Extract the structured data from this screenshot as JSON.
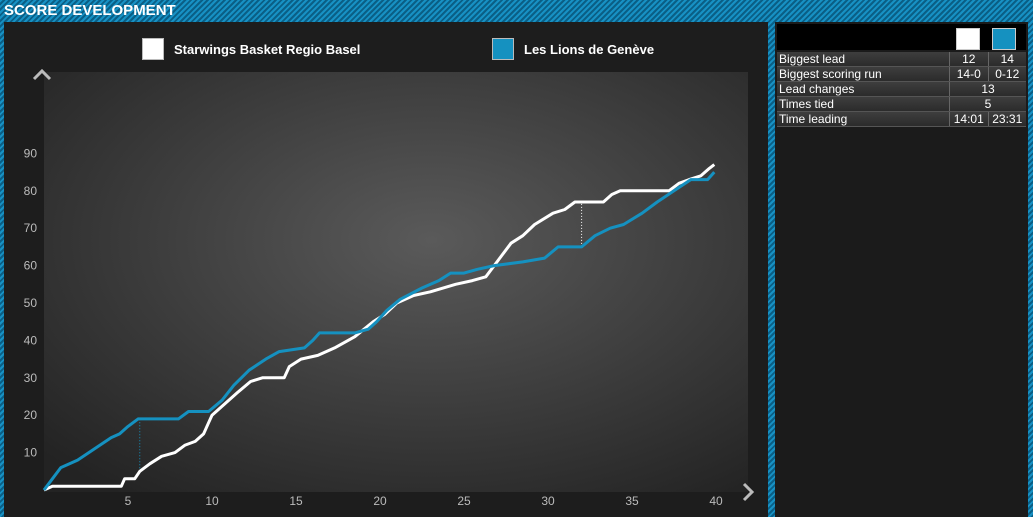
{
  "header": {
    "title": "SCORE DEVELOPMENT"
  },
  "legend": [
    {
      "name": "Starwings Basket Regio Basel",
      "color": "#ffffff"
    },
    {
      "name": "Les Lions de Genève",
      "color": "#1591c0"
    }
  ],
  "stats": {
    "rows": [
      {
        "label": "Biggest lead",
        "a": "12",
        "b": "14"
      },
      {
        "label": "Biggest scoring run",
        "a": "14-0",
        "b": "0-12"
      },
      {
        "label": "Lead changes",
        "both": "13"
      },
      {
        "label": "Times tied",
        "both": "5"
      },
      {
        "label": "Time leading",
        "a": "14:01",
        "b": "23:31"
      }
    ]
  },
  "chart_data": {
    "type": "line",
    "xlim": [
      0,
      40
    ],
    "ylim": [
      0,
      95
    ],
    "x_ticks": [
      "5",
      "10",
      "15",
      "20",
      "25",
      "30",
      "35",
      "40"
    ],
    "y_ticks": [
      "10",
      "20",
      "30",
      "40",
      "50",
      "60",
      "70",
      "80",
      "90"
    ],
    "series": [
      {
        "name": "Starwings Basket Regio Basel",
        "color": "#ffffff",
        "points": [
          [
            0,
            0
          ],
          [
            0.5,
            1
          ],
          [
            2,
            1
          ],
          [
            4.6,
            1
          ],
          [
            4.8,
            3
          ],
          [
            5.4,
            3
          ],
          [
            5.7,
            5
          ],
          [
            6.3,
            7
          ],
          [
            7,
            9
          ],
          [
            7.8,
            10
          ],
          [
            8.4,
            12
          ],
          [
            9,
            13
          ],
          [
            9.5,
            15
          ],
          [
            9.8,
            18
          ],
          [
            10,
            20
          ],
          [
            10.5,
            22
          ],
          [
            11,
            24
          ],
          [
            11.5,
            26
          ],
          [
            12.3,
            29
          ],
          [
            13,
            30
          ],
          [
            14.3,
            30
          ],
          [
            14.6,
            33
          ],
          [
            15.3,
            35
          ],
          [
            16.3,
            36
          ],
          [
            17.3,
            38
          ],
          [
            18.5,
            41
          ],
          [
            19.6,
            45
          ],
          [
            20.3,
            47
          ],
          [
            21,
            50
          ],
          [
            22,
            52
          ],
          [
            23,
            53
          ],
          [
            24.5,
            55
          ],
          [
            25.5,
            56
          ],
          [
            26.3,
            57
          ],
          [
            26.8,
            60
          ],
          [
            27.3,
            63
          ],
          [
            27.8,
            66
          ],
          [
            28.5,
            68
          ],
          [
            29.2,
            71
          ],
          [
            30.3,
            74
          ],
          [
            31,
            75
          ],
          [
            31.6,
            77
          ],
          [
            33.3,
            77
          ],
          [
            33.8,
            79
          ],
          [
            34.3,
            80
          ],
          [
            35.3,
            80
          ],
          [
            37.2,
            80
          ],
          [
            37.8,
            82
          ],
          [
            38.4,
            83
          ],
          [
            39.1,
            84
          ],
          [
            39.6,
            86
          ],
          [
            39.9,
            87
          ]
        ]
      },
      {
        "name": "Les Lions de Genève",
        "color": "#1591c0",
        "points": [
          [
            0,
            0
          ],
          [
            0.5,
            3
          ],
          [
            1,
            6
          ],
          [
            2,
            8
          ],
          [
            3,
            11
          ],
          [
            4,
            14
          ],
          [
            4.5,
            15
          ],
          [
            5,
            17
          ],
          [
            5.6,
            19
          ],
          [
            7,
            19
          ],
          [
            8,
            19
          ],
          [
            8.6,
            21
          ],
          [
            9.8,
            21
          ],
          [
            10.6,
            24
          ],
          [
            11.3,
            28
          ],
          [
            12.2,
            32
          ],
          [
            13.2,
            35
          ],
          [
            14,
            37
          ],
          [
            15.5,
            38
          ],
          [
            16,
            40
          ],
          [
            16.4,
            42
          ],
          [
            18.5,
            42
          ],
          [
            19.3,
            43
          ],
          [
            19.8,
            45
          ],
          [
            20.4,
            48
          ],
          [
            21.2,
            51
          ],
          [
            22.5,
            54
          ],
          [
            23.5,
            56
          ],
          [
            24.2,
            58
          ],
          [
            25,
            58
          ],
          [
            25.8,
            59
          ],
          [
            26.8,
            60
          ],
          [
            28.5,
            61
          ],
          [
            29.8,
            62
          ],
          [
            30.6,
            65
          ],
          [
            32,
            65
          ],
          [
            32.8,
            68
          ],
          [
            33.7,
            70
          ],
          [
            34.5,
            71
          ],
          [
            35.6,
            74
          ],
          [
            36.5,
            77
          ],
          [
            37.5,
            80
          ],
          [
            38.5,
            83
          ],
          [
            39.5,
            83
          ],
          [
            39.9,
            85
          ]
        ]
      }
    ],
    "annotations": [
      {
        "type": "dotted",
        "x": 5.7,
        "y1": 5,
        "y2": 19,
        "color": "#1591c0"
      },
      {
        "type": "dotted",
        "x": 32,
        "y1": 65,
        "y2": 77,
        "color": "#ffffff"
      }
    ]
  }
}
